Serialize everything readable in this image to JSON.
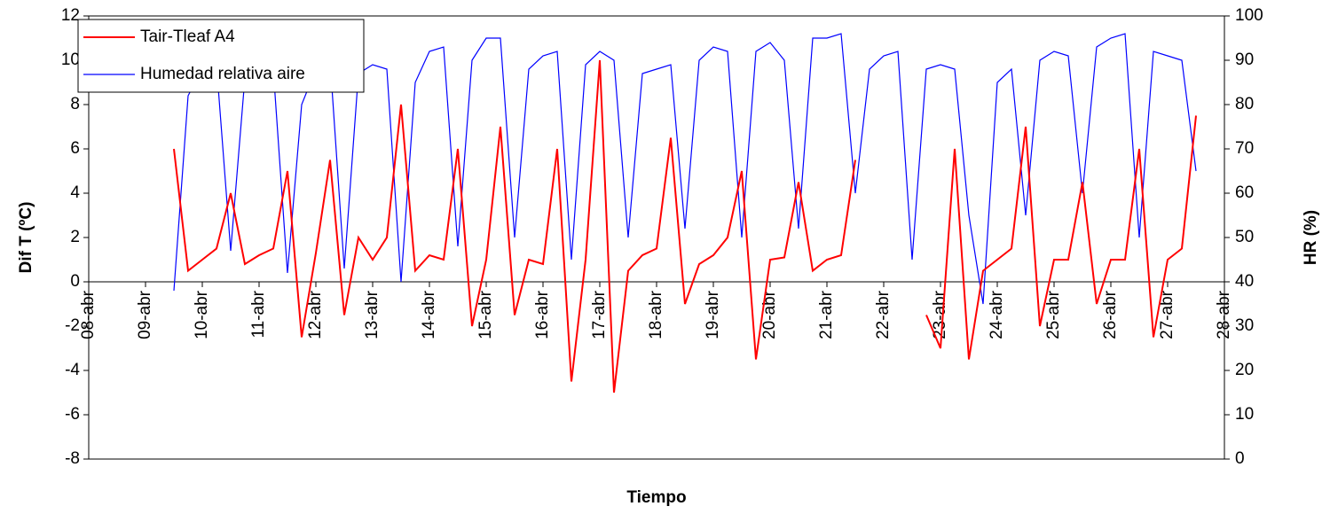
{
  "chart_data": {
    "type": "line",
    "y_label": "Dif T (ºC)",
    "y2_label": "HR (%)",
    "x_label": "Tiempo",
    "xlim": [
      8,
      28
    ],
    "xticks": [
      {
        "value": 8,
        "label": "08-abr"
      },
      {
        "value": 9,
        "label": "09-abr"
      },
      {
        "value": 10,
        "label": "10-abr"
      },
      {
        "value": 11,
        "label": "11-abr"
      },
      {
        "value": 12,
        "label": "12-abr"
      },
      {
        "value": 13,
        "label": "13-abr"
      },
      {
        "value": 14,
        "label": "14-abr"
      },
      {
        "value": 15,
        "label": "15-abr"
      },
      {
        "value": 16,
        "label": "16-abr"
      },
      {
        "value": 17,
        "label": "17-abr"
      },
      {
        "value": 18,
        "label": "18-abr"
      },
      {
        "value": 19,
        "label": "19-abr"
      },
      {
        "value": 20,
        "label": "20-abr"
      },
      {
        "value": 21,
        "label": "21-abr"
      },
      {
        "value": 22,
        "label": "22-abr"
      },
      {
        "value": 23,
        "label": "23-abr"
      },
      {
        "value": 24,
        "label": "24-abr"
      },
      {
        "value": 25,
        "label": "25-abr"
      },
      {
        "value": 26,
        "label": "26-abr"
      },
      {
        "value": 27,
        "label": "27-abr"
      },
      {
        "value": 28,
        "label": "28-abr"
      }
    ],
    "ylim": [
      -8,
      12
    ],
    "yticks": [
      -8,
      -6,
      -4,
      -2,
      0,
      2,
      4,
      6,
      8,
      10,
      12
    ],
    "y2lim": [
      0,
      100
    ],
    "y2ticks": [
      0,
      10,
      20,
      30,
      40,
      50,
      60,
      70,
      80,
      90,
      100
    ],
    "legend": "upper left",
    "grid": false,
    "x": [
      9.5,
      9.75,
      10,
      10.25,
      10.5,
      10.75,
      11,
      11.25,
      11.5,
      11.75,
      12,
      12.25,
      12.5,
      12.75,
      13,
      13.25,
      13.5,
      13.75,
      14,
      14.25,
      14.5,
      14.75,
      15,
      15.25,
      15.5,
      15.75,
      16,
      16.25,
      16.5,
      16.75,
      17,
      17.25,
      17.5,
      17.75,
      18,
      18.25,
      18.5,
      18.75,
      19,
      19.25,
      19.5,
      19.75,
      20,
      20.25,
      20.5,
      20.75,
      21,
      21.25,
      21.5,
      21.75,
      22,
      22.25,
      22.5,
      22.75,
      23,
      23.25,
      23.5,
      23.75,
      24,
      24.25,
      24.5,
      24.75,
      25,
      25.25,
      25.5,
      25.75,
      26,
      26.25,
      26.5,
      26.75,
      27,
      27.25,
      27.5
    ],
    "series": [
      {
        "name": "Tair-Tleaf A4",
        "color": "#ff0000",
        "axis": "y",
        "values": [
          6,
          0.5,
          1,
          1.5,
          4,
          0.8,
          1.2,
          1.5,
          5,
          -2.5,
          1.3,
          5.5,
          -1.5,
          2,
          1,
          2,
          8,
          0.5,
          1.2,
          1,
          6,
          -2,
          1,
          7,
          -1.5,
          1,
          0.8,
          6,
          -4.5,
          1,
          10,
          -5,
          0.5,
          1.2,
          1.5,
          6.5,
          -1,
          0.8,
          1.2,
          2,
          5,
          -3.5,
          1,
          1.1,
          4.5,
          0.5,
          1,
          1.2,
          5.5,
          null,
          null,
          null,
          null,
          -1.5,
          -3,
          6,
          -3.5,
          0.5,
          1,
          1.5,
          7,
          -2,
          1,
          1,
          4.5,
          -1,
          1,
          1,
          6,
          -2.5,
          1,
          1.5,
          7.5
        ]
      },
      {
        "name": "Humedad relativa aire",
        "color": "#0000ff",
        "axis": "y2",
        "values": [
          38,
          82,
          88,
          89,
          47,
          86,
          89,
          88,
          42,
          80,
          88,
          90,
          43,
          87,
          89,
          88,
          40,
          85,
          92,
          93,
          48,
          90,
          95,
          95,
          50,
          88,
          91,
          92,
          45,
          89,
          92,
          90,
          50,
          87,
          88,
          89,
          52,
          90,
          93,
          92,
          50,
          92,
          94,
          90,
          52,
          95,
          95,
          96,
          60,
          88,
          91,
          92,
          45,
          88,
          89,
          88,
          55,
          35,
          85,
          88,
          55,
          90,
          92,
          91,
          60,
          93,
          95,
          96,
          50,
          92,
          91,
          90,
          65
        ]
      }
    ]
  }
}
